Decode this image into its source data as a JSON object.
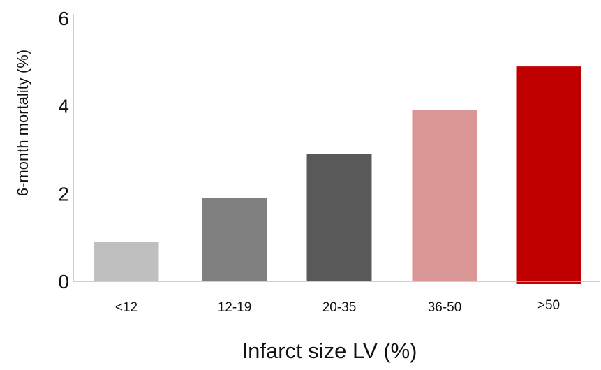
{
  "chart_data": {
    "type": "bar",
    "categories": [
      "<12",
      "12-19",
      "20-35",
      "36-50",
      ">50"
    ],
    "values": [
      0.9,
      1.9,
      2.9,
      3.9,
      4.9
    ],
    "colors": [
      "#bfbfbf",
      "#808080",
      "#595959",
      "#d99694",
      "#c00000"
    ],
    "xlabel": "Infarct size LV (%)",
    "ylabel": "6-month mortality (%)",
    "ylim": [
      0,
      6
    ],
    "yticks": [
      0,
      2,
      4,
      6
    ],
    "grid": false,
    "legend": "none"
  }
}
